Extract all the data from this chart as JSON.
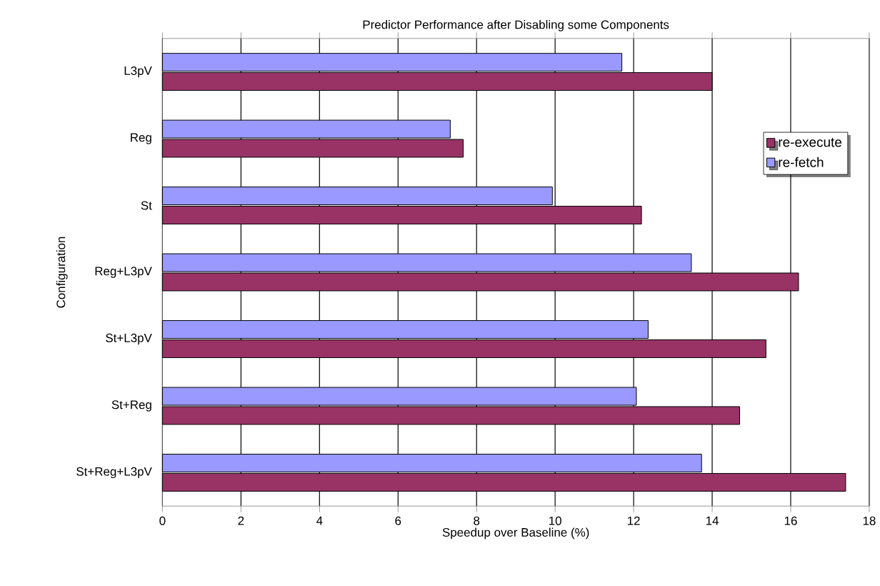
{
  "chart_data": {
    "type": "bar",
    "orientation": "horizontal",
    "title": "Predictor Performance after Disabling some Components",
    "xlabel": "Speedup over Baseline (%)",
    "ylabel": "Configuration",
    "categories": [
      "L3pV",
      "Reg",
      "St",
      "Reg+L3pV",
      "St+L3pV",
      "St+Reg",
      "St+Reg+L3pV"
    ],
    "series": [
      {
        "name": "re-execute",
        "color": "#993366",
        "values": [
          14.0,
          7.66,
          12.2,
          16.2,
          15.37,
          14.7,
          17.4
        ]
      },
      {
        "name": "re-fetch",
        "color": "#9999ff",
        "values": [
          11.7,
          7.33,
          9.93,
          13.47,
          12.37,
          12.07,
          13.73
        ]
      }
    ],
    "xlim": [
      0,
      18
    ],
    "xticks": [
      0,
      2,
      4,
      6,
      8,
      10,
      12,
      14,
      16,
      18
    ],
    "grid": "x",
    "legend": "top right"
  }
}
